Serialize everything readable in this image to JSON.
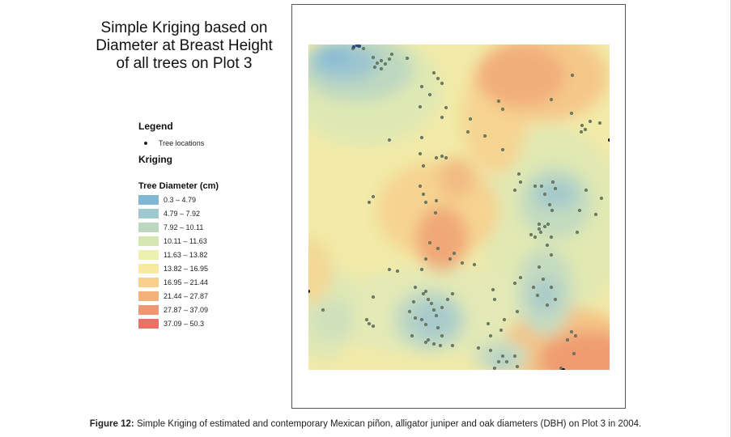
{
  "title_lines": [
    "Simple Kriging based on",
    "Diameter at Breast Height",
    "of all trees on Plot 3"
  ],
  "legend": {
    "heading": "Legend",
    "tree_label": "Tree locations",
    "kriging_heading": "Kriging",
    "diameter_heading": "Tree Diameter (cm)",
    "classes": [
      {
        "label": "0.3 – 4.79",
        "color": "#7fb7d4"
      },
      {
        "label": "4.79 – 7.92",
        "color": "#a0c8cf"
      },
      {
        "label": "7.92 – 10.11",
        "color": "#bdd8c0"
      },
      {
        "label": "10.11 – 11.63",
        "color": "#d6e6b3"
      },
      {
        "label": "11.63 – 13.82",
        "color": "#eef0b0"
      },
      {
        "label": "13.82 – 16.95",
        "color": "#f7e9a0"
      },
      {
        "label": "16.95 – 21.44",
        "color": "#f8d08c"
      },
      {
        "label": "21.44 – 27.87",
        "color": "#f4b27a"
      },
      {
        "label": "27.87 – 37.09",
        "color": "#ef9770"
      },
      {
        "label": "37.09 – 50.3",
        "color": "#ea7168"
      }
    ]
  },
  "caption": {
    "label": "Figure 12:",
    "text": "Simple Kriging of estimated and contemporary Mexican piñon, alligator juniper and oak diameters (DBH) on Plot 3 in 2004."
  }
}
